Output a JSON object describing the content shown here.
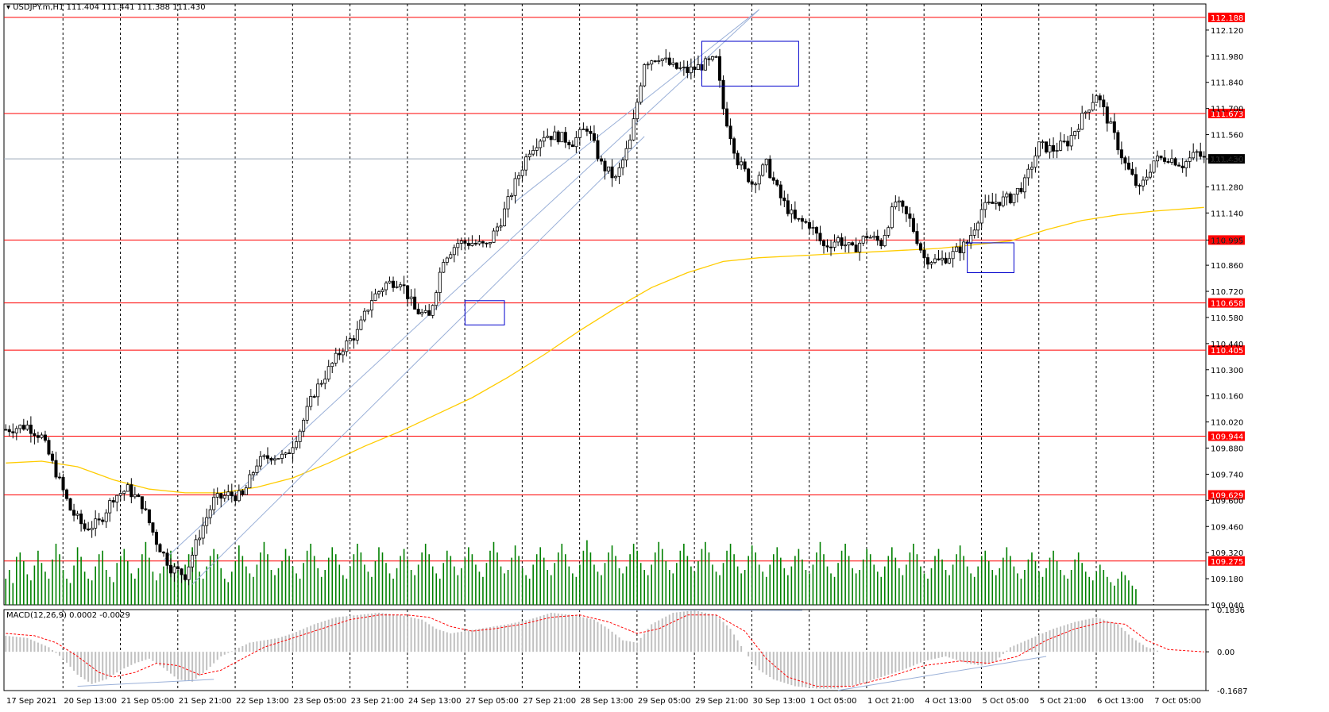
{
  "header": {
    "symbol_text": "USDJPY.m,H1",
    "ohlc_text": "111.404 111.441 111.388 111.430",
    "indicator_text": "MACD(12,26,9) 0.0002 -0.0029"
  },
  "colors": {
    "background": "#ffffff",
    "bull_candle": "#ffffff",
    "bear_candle": "#000000",
    "wick": "#000000",
    "level_line": "#ff0000",
    "level_label_bg": "#ff0000",
    "ma_line": "#ffcc00",
    "volume": "#008000",
    "macd_hist": "#c0c0c0",
    "macd_signal": "#ff0000",
    "channel": "#9ab0d8",
    "box": "#0000cc",
    "grid": "#000000"
  },
  "chart_data": [
    {
      "type": "candlestick",
      "title": "USDJPY.m,H1",
      "ylim": [
        109.04,
        112.26
      ],
      "y_ticks": [
        "112.120",
        "111.980",
        "111.840",
        "111.700",
        "111.560",
        "111.430",
        "111.280",
        "111.140",
        "110.995",
        "110.860",
        "110.720",
        "110.580",
        "110.440",
        "110.300",
        "110.160",
        "110.020",
        "109.880",
        "109.740",
        "109.600",
        "109.460",
        "109.320",
        "109.180",
        "109.040"
      ],
      "x_ticks": [
        "17 Sep 2021",
        "20 Sep 13:00",
        "21 Sep 05:00",
        "21 Sep 21:00",
        "22 Sep 13:00",
        "23 Sep 05:00",
        "23 Sep 21:00",
        "24 Sep 13:00",
        "27 Sep 05:00",
        "27 Sep 21:00",
        "28 Sep 13:00",
        "29 Sep 05:00",
        "29 Sep 21:00",
        "30 Sep 13:00",
        "1 Oct 05:00",
        "1 Oct 21:00",
        "4 Oct 13:00",
        "5 Oct 05:00",
        "5 Oct 21:00",
        "6 Oct 13:00",
        "7 Oct 05:00"
      ],
      "horizontal_levels": [
        "112.188",
        "111.673",
        "110.995",
        "110.658",
        "110.405",
        "109.944",
        "109.629",
        "109.275"
      ],
      "current_price": "111.430",
      "price_path": [
        [
          0,
          109.98
        ],
        [
          6,
          110.0
        ],
        [
          10,
          109.94
        ],
        [
          14,
          109.75
        ],
        [
          18,
          109.55
        ],
        [
          22,
          109.45
        ],
        [
          26,
          109.48
        ],
        [
          30,
          109.62
        ],
        [
          34,
          109.66
        ],
        [
          38,
          109.58
        ],
        [
          42,
          109.38
        ],
        [
          46,
          109.24
        ],
        [
          50,
          109.2
        ],
        [
          54,
          109.42
        ],
        [
          58,
          109.6
        ],
        [
          62,
          109.63
        ],
        [
          66,
          109.62
        ],
        [
          70,
          109.8
        ],
        [
          74,
          109.84
        ],
        [
          78,
          109.83
        ],
        [
          82,
          109.98
        ],
        [
          86,
          110.18
        ],
        [
          90,
          110.3
        ],
        [
          94,
          110.42
        ],
        [
          98,
          110.5
        ],
        [
          102,
          110.68
        ],
        [
          106,
          110.76
        ],
        [
          110,
          110.78
        ],
        [
          114,
          110.62
        ],
        [
          118,
          110.58
        ],
        [
          122,
          110.9
        ],
        [
          126,
          110.98
        ],
        [
          130,
          110.98
        ],
        [
          134,
          110.96
        ],
        [
          138,
          111.1
        ],
        [
          142,
          111.3
        ],
        [
          146,
          111.48
        ],
        [
          150,
          111.56
        ],
        [
          154,
          111.55
        ],
        [
          158,
          111.52
        ],
        [
          162,
          111.6
        ],
        [
          166,
          111.4
        ],
        [
          170,
          111.32
        ],
        [
          174,
          111.52
        ],
        [
          178,
          111.95
        ],
        [
          182,
          111.98
        ],
        [
          186,
          111.92
        ],
        [
          190,
          111.9
        ],
        [
          194,
          111.93
        ],
        [
          198,
          111.96
        ],
        [
          200,
          111.7
        ],
        [
          204,
          111.42
        ],
        [
          208,
          111.3
        ],
        [
          212,
          111.4
        ],
        [
          216,
          111.22
        ],
        [
          220,
          111.1
        ],
        [
          224,
          111.08
        ],
        [
          228,
          110.96
        ],
        [
          232,
          111.0
        ],
        [
          236,
          110.94
        ],
        [
          240,
          111.02
        ],
        [
          244,
          110.98
        ],
        [
          248,
          111.2
        ],
        [
          252,
          111.1
        ],
        [
          256,
          110.9
        ],
        [
          260,
          110.88
        ],
        [
          264,
          110.92
        ],
        [
          268,
          110.98
        ],
        [
          272,
          111.16
        ],
        [
          276,
          111.2
        ],
        [
          280,
          111.22
        ],
        [
          284,
          111.3
        ],
        [
          288,
          111.5
        ],
        [
          292,
          111.48
        ],
        [
          296,
          111.52
        ],
        [
          300,
          111.65
        ],
        [
          304,
          111.78
        ],
        [
          308,
          111.6
        ],
        [
          312,
          111.4
        ],
        [
          316,
          111.26
        ],
        [
          320,
          111.42
        ],
        [
          324,
          111.44
        ],
        [
          328,
          111.4
        ],
        [
          332,
          111.46
        ],
        [
          334,
          111.43
        ]
      ],
      "ma_path": [
        [
          0,
          109.8
        ],
        [
          10,
          109.81
        ],
        [
          20,
          109.78
        ],
        [
          30,
          109.71
        ],
        [
          40,
          109.66
        ],
        [
          50,
          109.64
        ],
        [
          60,
          109.64
        ],
        [
          70,
          109.67
        ],
        [
          80,
          109.72
        ],
        [
          90,
          109.8
        ],
        [
          100,
          109.89
        ],
        [
          110,
          109.97
        ],
        [
          120,
          110.06
        ],
        [
          130,
          110.15
        ],
        [
          140,
          110.26
        ],
        [
          150,
          110.38
        ],
        [
          160,
          110.51
        ],
        [
          170,
          110.63
        ],
        [
          180,
          110.74
        ],
        [
          190,
          110.82
        ],
        [
          200,
          110.88
        ],
        [
          210,
          110.9
        ],
        [
          220,
          110.91
        ],
        [
          230,
          110.92
        ],
        [
          240,
          110.93
        ],
        [
          250,
          110.94
        ],
        [
          260,
          110.95
        ],
        [
          270,
          110.97
        ],
        [
          280,
          110.99
        ],
        [
          290,
          111.05
        ],
        [
          300,
          111.1
        ],
        [
          310,
          111.13
        ],
        [
          320,
          111.15
        ],
        [
          334,
          111.17
        ]
      ],
      "channel_lines": [
        {
          "from": [
            44,
            109.28
          ],
          "to": [
            210,
            112.23
          ]
        },
        {
          "from": [
            52,
            109.15
          ],
          "to": [
            178,
            111.55
          ]
        },
        {
          "from": [
            142,
            111.2
          ],
          "to": [
            210,
            112.23
          ]
        }
      ],
      "boxes": [
        {
          "x": [
            128,
            139
          ],
          "y": [
            110.54,
            110.67
          ]
        },
        {
          "x": [
            194,
            221
          ],
          "y": [
            111.82,
            112.06
          ]
        },
        {
          "x": [
            268,
            281
          ],
          "y": [
            110.82,
            110.98
          ]
        }
      ],
      "volume": [
        30,
        40,
        25,
        55,
        60,
        50,
        35,
        28,
        45,
        62,
        48,
        38,
        30,
        52,
        70,
        58,
        40,
        30,
        25,
        45,
        66,
        55,
        38,
        30,
        28,
        44,
        58,
        62,
        40,
        32,
        26,
        48,
        56,
        64,
        50,
        36,
        30,
        42,
        58,
        72,
        54,
        38,
        28,
        36,
        44,
        58,
        62,
        48,
        40,
        34,
        46,
        58,
        66,
        52,
        38,
        30,
        44,
        56,
        64,
        58,
        42,
        30,
        26,
        38,
        50,
        68,
        56,
        44,
        36,
        32,
        46,
        60,
        72,
        58,
        40,
        34,
        42,
        50,
        64,
        56,
        44,
        36,
        30,
        48,
        62,
        70,
        56,
        42,
        32,
        40,
        54,
        66,
        58,
        46,
        34,
        30,
        44,
        58,
        70,
        60,
        46,
        38,
        32,
        50,
        66,
        60,
        48,
        36,
        30,
        42,
        56,
        64,
        52,
        40,
        34,
        46,
        60,
        70,
        58,
        44,
        36,
        30,
        48,
        62,
        56,
        44,
        34,
        42,
        54,
        66,
        58,
        46,
        38,
        32,
        48,
        62,
        72,
        60,
        44,
        36,
        40,
        54,
        68,
        56,
        42,
        34,
        30,
        46,
        58,
        66,
        54,
        40,
        34,
        48,
        60,
        70,
        58,
        44,
        36,
        32,
        46,
        62,
        74,
        60,
        46,
        38,
        34,
        48,
        60,
        68,
        56,
        42,
        36,
        44,
        58,
        70,
        62,
        48,
        40,
        34,
        46,
        60,
        72,
        64,
        50,
        40,
        36,
        48,
        62,
        70,
        56,
        44,
        38,
        50,
        64,
        72,
        60,
        46,
        38,
        34,
        48,
        62,
        70,
        58,
        44,
        36,
        40,
        56,
        68,
        60,
        46,
        38,
        32,
        46,
        58,
        66,
        54,
        42,
        34,
        44,
        56,
        64,
        52,
        40,
        36,
        46,
        60,
        72,
        58,
        44,
        36,
        32,
        48,
        62,
        70,
        56,
        42,
        36,
        40,
        52,
        64,
        58,
        46,
        38,
        32,
        44,
        56,
        66,
        54,
        42,
        34,
        46,
        60,
        70,
        58,
        44,
        36,
        30,
        42,
        56,
        64,
        52,
        40,
        34,
        46,
        58,
        68,
        56,
        44,
        36,
        32,
        44,
        56,
        62,
        50,
        40,
        34,
        42,
        54,
        66,
        56,
        44,
        36,
        30,
        40,
        52,
        60,
        50,
        38,
        32,
        42,
        54,
        62,
        50,
        40,
        34,
        30,
        40,
        52,
        60,
        48,
        38,
        32,
        28,
        38,
        46,
        40,
        32,
        26,
        22,
        30,
        38,
        34,
        28,
        22,
        18
      ],
      "volume_max": 100
    },
    {
      "type": "bar",
      "title": "MACD(12,26,9)",
      "ylim": [
        -0.1687,
        0.1836
      ],
      "y_ticks": [
        "0.1836",
        "0.00",
        "-0.1687"
      ],
      "macd_hist_path": [
        [
          0,
          0.07
        ],
        [
          6,
          0.06
        ],
        [
          12,
          0.02
        ],
        [
          16,
          -0.03
        ],
        [
          20,
          -0.1
        ],
        [
          24,
          -0.14
        ],
        [
          28,
          -0.12
        ],
        [
          32,
          -0.08
        ],
        [
          36,
          -0.05
        ],
        [
          40,
          -0.03
        ],
        [
          44,
          -0.07
        ],
        [
          48,
          -0.12
        ],
        [
          52,
          -0.13
        ],
        [
          56,
          -0.08
        ],
        [
          60,
          -0.02
        ],
        [
          64,
          0.01
        ],
        [
          68,
          0.04
        ],
        [
          72,
          0.05
        ],
        [
          76,
          0.06
        ],
        [
          80,
          0.08
        ],
        [
          86,
          0.12
        ],
        [
          92,
          0.15
        ],
        [
          98,
          0.16
        ],
        [
          104,
          0.17
        ],
        [
          110,
          0.16
        ],
        [
          116,
          0.14
        ],
        [
          120,
          0.1
        ],
        [
          124,
          0.08
        ],
        [
          128,
          0.09
        ],
        [
          132,
          0.1
        ],
        [
          136,
          0.11
        ],
        [
          140,
          0.12
        ],
        [
          146,
          0.14
        ],
        [
          152,
          0.17
        ],
        [
          158,
          0.16
        ],
        [
          164,
          0.14
        ],
        [
          168,
          0.1
        ],
        [
          172,
          0.05
        ],
        [
          176,
          0.04
        ],
        [
          180,
          0.12
        ],
        [
          186,
          0.17
        ],
        [
          192,
          0.18
        ],
        [
          198,
          0.16
        ],
        [
          202,
          0.1
        ],
        [
          206,
          0.0
        ],
        [
          210,
          -0.08
        ],
        [
          214,
          -0.12
        ],
        [
          220,
          -0.15
        ],
        [
          226,
          -0.16
        ],
        [
          232,
          -0.16
        ],
        [
          238,
          -0.14
        ],
        [
          244,
          -0.11
        ],
        [
          250,
          -0.08
        ],
        [
          256,
          -0.04
        ],
        [
          262,
          -0.02
        ],
        [
          268,
          -0.05
        ],
        [
          272,
          -0.06
        ],
        [
          276,
          -0.04
        ],
        [
          280,
          0.02
        ],
        [
          286,
          0.06
        ],
        [
          292,
          0.1
        ],
        [
          298,
          0.13
        ],
        [
          304,
          0.15
        ],
        [
          310,
          0.12
        ],
        [
          314,
          0.06
        ],
        [
          318,
          0.02
        ],
        [
          322,
          0.0
        ],
        [
          328,
          0.0
        ],
        [
          334,
          0.0
        ]
      ],
      "signal_path": [
        [
          0,
          0.08
        ],
        [
          8,
          0.07
        ],
        [
          14,
          0.04
        ],
        [
          20,
          -0.02
        ],
        [
          26,
          -0.09
        ],
        [
          30,
          -0.11
        ],
        [
          36,
          -0.09
        ],
        [
          42,
          -0.05
        ],
        [
          48,
          -0.06
        ],
        [
          54,
          -0.1
        ],
        [
          60,
          -0.08
        ],
        [
          66,
          -0.03
        ],
        [
          72,
          0.02
        ],
        [
          80,
          0.06
        ],
        [
          88,
          0.1
        ],
        [
          96,
          0.14
        ],
        [
          104,
          0.16
        ],
        [
          112,
          0.16
        ],
        [
          118,
          0.15
        ],
        [
          124,
          0.11
        ],
        [
          130,
          0.09
        ],
        [
          136,
          0.1
        ],
        [
          144,
          0.12
        ],
        [
          152,
          0.15
        ],
        [
          160,
          0.16
        ],
        [
          168,
          0.13
        ],
        [
          176,
          0.08
        ],
        [
          182,
          0.1
        ],
        [
          190,
          0.16
        ],
        [
          198,
          0.16
        ],
        [
          206,
          0.09
        ],
        [
          212,
          -0.03
        ],
        [
          218,
          -0.11
        ],
        [
          226,
          -0.15
        ],
        [
          236,
          -0.15
        ],
        [
          246,
          -0.11
        ],
        [
          256,
          -0.06
        ],
        [
          266,
          -0.04
        ],
        [
          274,
          -0.05
        ],
        [
          282,
          -0.02
        ],
        [
          290,
          0.05
        ],
        [
          298,
          0.1
        ],
        [
          306,
          0.13
        ],
        [
          312,
          0.12
        ],
        [
          318,
          0.05
        ],
        [
          324,
          0.01
        ],
        [
          334,
          0.0
        ]
      ]
    }
  ]
}
